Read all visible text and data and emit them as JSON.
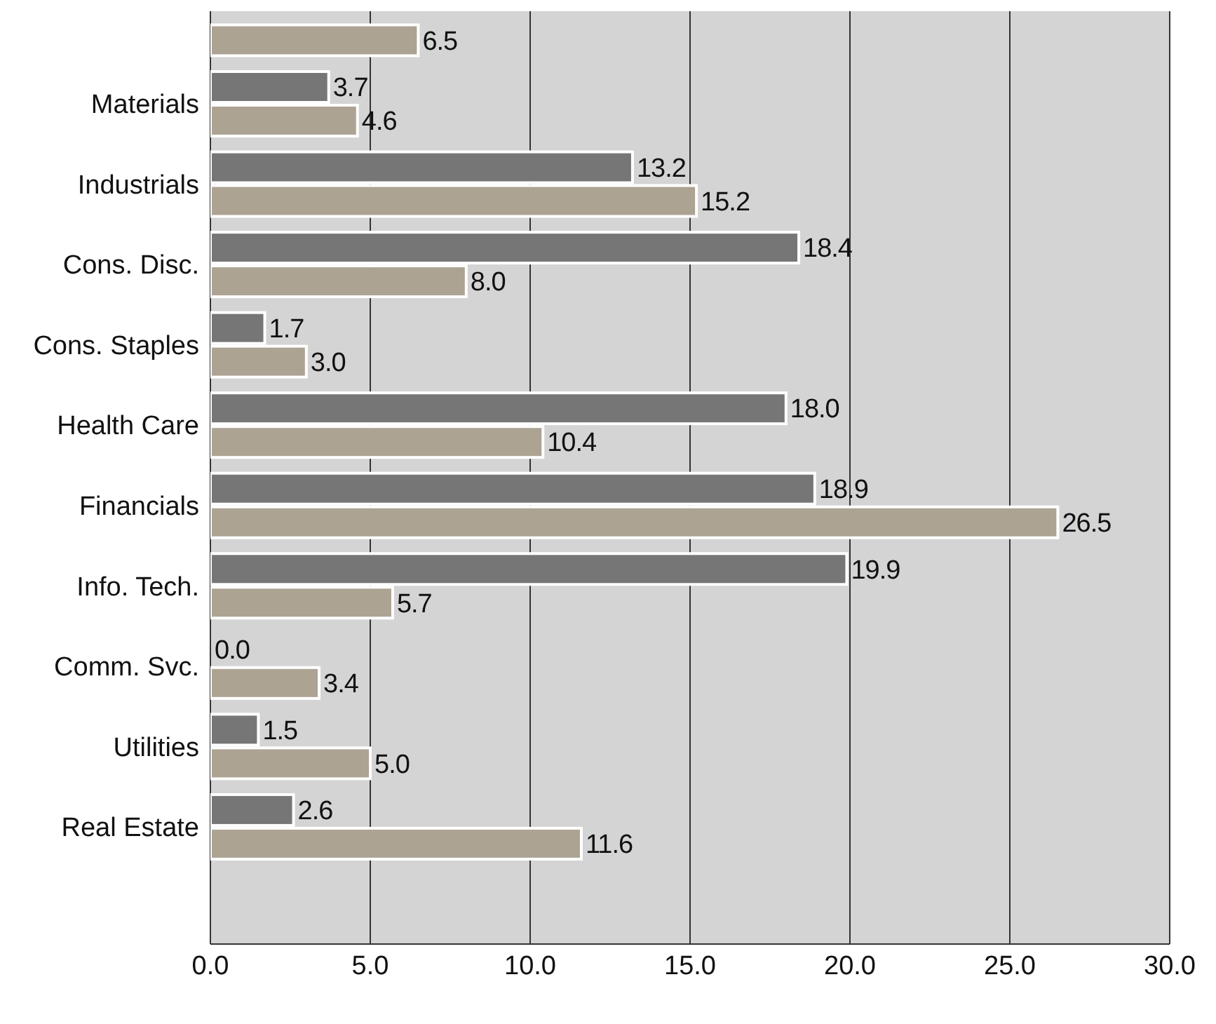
{
  "chart_data": {
    "type": "bar",
    "orientation": "horizontal",
    "categories": [
      null,
      "Materials",
      "Industrials",
      "Cons. Disc.",
      "Cons. Staples",
      "Health Care",
      "Financials",
      "Info. Tech.",
      "Comm. Svc.",
      "Utilities",
      "Real Estate"
    ],
    "series": [
      {
        "color": "#767676",
        "values": [
          null,
          3.7,
          13.2,
          18.4,
          1.7,
          18.0,
          18.9,
          19.9,
          0.0,
          1.5,
          2.6
        ],
        "value_labels": [
          null,
          "3.7",
          "13.2",
          "18.4",
          "1.7",
          "18.0",
          "18.9",
          "19.9",
          "0.0",
          "1.5",
          "2.6"
        ]
      },
      {
        "color": "#aca393",
        "values": [
          6.5,
          4.6,
          15.2,
          8.0,
          3.0,
          10.4,
          26.5,
          5.7,
          3.4,
          5.0,
          11.6
        ],
        "value_labels": [
          "6.5",
          "4.6",
          "15.2",
          "8.0",
          "3.0",
          "10.4",
          "26.5",
          "5.7",
          "3.4",
          "5.0",
          "11.6"
        ]
      }
    ],
    "xlim": [
      0,
      30
    ],
    "xticks": [
      {
        "value": 0,
        "label": "0.0"
      },
      {
        "value": 5,
        "label": "5.0"
      },
      {
        "value": 10,
        "label": "10.0"
      },
      {
        "value": 15,
        "label": "15.0"
      },
      {
        "value": 20,
        "label": "20.0"
      },
      {
        "value": 25,
        "label": "25.0"
      },
      {
        "value": 30,
        "label": "30.0"
      }
    ],
    "grid": "x"
  }
}
